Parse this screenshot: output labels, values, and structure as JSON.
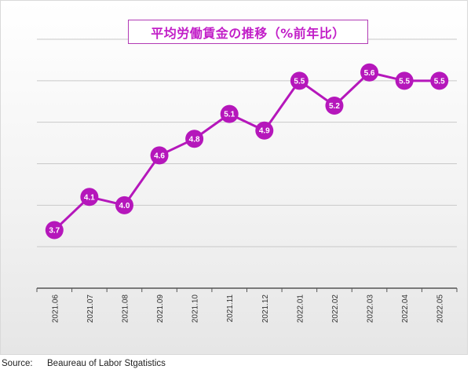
{
  "chart_data": {
    "type": "line",
    "title": "平均労働賃金の推移（%前年比）",
    "categories": [
      "2021.06",
      "2021.07",
      "2021.08",
      "2021.09",
      "2021.10",
      "2021.11",
      "2021.12",
      "2022.01",
      "2022.02",
      "2022.03",
      "2022.04",
      "2022.05"
    ],
    "series": [
      {
        "values": [
          3.7,
          4.1,
          4.0,
          4.6,
          4.8,
          5.1,
          4.9,
          5.5,
          5.2,
          5.6,
          5.5,
          5.5
        ],
        "labels": [
          "3.7",
          "4.1",
          "4.0",
          "4.6",
          "4.8",
          "5.1",
          "4.9",
          "5.5",
          "5.2",
          "5.6",
          "5.5",
          "5.5"
        ]
      }
    ],
    "xlabel": "",
    "ylabel": "",
    "ylim": [
      3.0,
      6.0
    ],
    "y_gridlines": [
      3.5,
      4.0,
      4.5,
      5.0,
      5.5,
      6.0
    ],
    "y_tick_labels_shown": false,
    "grid": true,
    "legend": "none",
    "line_color": "#b517bb",
    "marker_color": "#b517bb"
  },
  "source": {
    "label": "Source:",
    "text": "Beaureau of Labor Stgatistics"
  }
}
